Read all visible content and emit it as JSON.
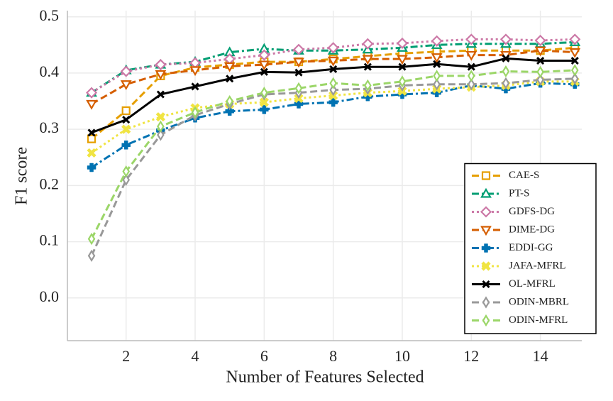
{
  "chart_data": {
    "type": "line",
    "x_label": "Number of Features Selected",
    "y_label": "F1 score",
    "x": [
      1,
      2,
      3,
      4,
      5,
      6,
      7,
      8,
      9,
      10,
      11,
      12,
      13,
      14,
      15
    ],
    "xlim": [
      0.3,
      15.2
    ],
    "ylim": [
      -0.076,
      0.511
    ],
    "xticks": [
      2,
      4,
      6,
      8,
      10,
      12,
      14
    ],
    "yticks": [
      {
        "value": 0,
        "label": "0.0"
      },
      0.1,
      0.2,
      0.3,
      0.4,
      0.5
    ],
    "grid": true,
    "legend": "lower right",
    "series": [
      {
        "name": "CAE-S",
        "color": "#e69f00",
        "marker": "square",
        "dash": "dashed",
        "values": [
          0.283,
          0.333,
          0.395,
          0.41,
          0.415,
          0.42,
          0.42,
          0.425,
          0.43,
          0.435,
          0.438,
          0.44,
          0.44,
          0.44,
          0.445
        ]
      },
      {
        "name": "PT-S",
        "color": "#009e73",
        "marker": "triangle",
        "dash": "dashdot",
        "values": [
          0.365,
          0.405,
          0.415,
          0.42,
          0.437,
          0.443,
          0.44,
          0.44,
          0.442,
          0.445,
          0.45,
          0.452,
          0.452,
          0.452,
          0.455
        ]
      },
      {
        "name": "GDFS-DG",
        "color": "#cc79a7",
        "marker": "diamond",
        "dash": "dotted",
        "values": [
          0.365,
          0.403,
          0.415,
          0.418,
          0.425,
          0.432,
          0.442,
          0.445,
          0.452,
          0.453,
          0.457,
          0.46,
          0.46,
          0.458,
          0.46
        ]
      },
      {
        "name": "DIME-DG",
        "color": "#d55e00",
        "marker": "triangle-down",
        "dash": "dashed",
        "values": [
          0.345,
          0.38,
          0.398,
          0.405,
          0.412,
          0.415,
          0.42,
          0.422,
          0.425,
          0.425,
          0.428,
          0.432,
          0.432,
          0.44,
          0.437
        ]
      },
      {
        "name": "EDDI-GG",
        "color": "#0072b2",
        "marker": "plus",
        "dash": "dashdot",
        "values": [
          0.232,
          0.272,
          0.298,
          0.32,
          0.332,
          0.335,
          0.345,
          0.348,
          0.358,
          0.362,
          0.365,
          0.378,
          0.372,
          0.382,
          0.38
        ]
      },
      {
        "name": "JAFA-MFRL",
        "color": "#f0e442",
        "marker": "x-filled",
        "dash": "dotted",
        "values": [
          0.258,
          0.3,
          0.322,
          0.338,
          0.345,
          0.348,
          0.355,
          0.36,
          0.365,
          0.368,
          0.372,
          0.375,
          0.378,
          0.385,
          0.385
        ]
      },
      {
        "name": "OL-MFRL",
        "color": "#000000",
        "marker": "x",
        "dash": "solid",
        "values": [
          0.294,
          0.317,
          0.362,
          0.376,
          0.39,
          0.402,
          0.401,
          0.407,
          0.411,
          0.411,
          0.416,
          0.411,
          0.426,
          0.422,
          0.422
        ]
      },
      {
        "name": "ODIN-MBRL",
        "color": "#999999",
        "marker": "thin-diamond",
        "dash": "dashed",
        "values": [
          0.075,
          0.21,
          0.29,
          0.325,
          0.345,
          0.362,
          0.365,
          0.37,
          0.372,
          0.378,
          0.38,
          0.38,
          0.382,
          0.388,
          0.39
        ]
      },
      {
        "name": "ODIN-MFRL",
        "color": "#9bd668",
        "marker": "thin-diamond",
        "dash": "dashed",
        "values": [
          0.105,
          0.225,
          0.305,
          0.33,
          0.35,
          0.365,
          0.373,
          0.382,
          0.378,
          0.385,
          0.395,
          0.395,
          0.403,
          0.402,
          0.405
        ]
      }
    ]
  }
}
